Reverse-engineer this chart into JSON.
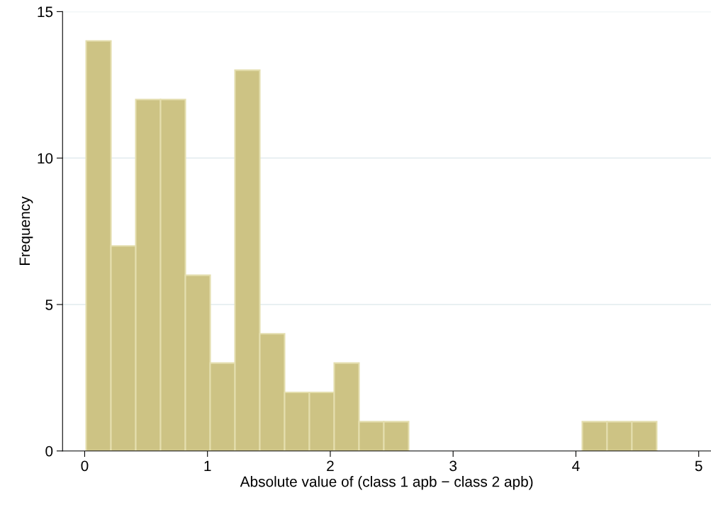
{
  "chart_data": {
    "type": "histogram",
    "xlabel": "Absolute value of (class 1 apb − class 2 apb)",
    "ylabel": "Frequency",
    "bins": [
      0.012,
      0.214,
      0.416,
      0.618,
      0.82,
      1.022,
      1.224,
      1.426,
      1.628,
      1.83,
      2.032,
      2.234,
      2.436,
      2.638,
      2.84,
      3.042,
      3.244,
      3.446,
      3.648,
      3.85,
      4.052,
      4.254,
      4.456,
      4.658
    ],
    "values": [
      14,
      7,
      12,
      12,
      6,
      3,
      13,
      4,
      2,
      2,
      3,
      1,
      1,
      0,
      0,
      0,
      0,
      0,
      0,
      0,
      1,
      1,
      1
    ],
    "color": "#cdc384",
    "xlim": [
      -0.18,
      5.1
    ],
    "xticks": [
      0,
      1,
      2,
      3,
      4,
      5
    ],
    "ylim": [
      0,
      15
    ],
    "yticks": [
      0,
      5,
      10,
      15
    ],
    "grid": "y"
  }
}
